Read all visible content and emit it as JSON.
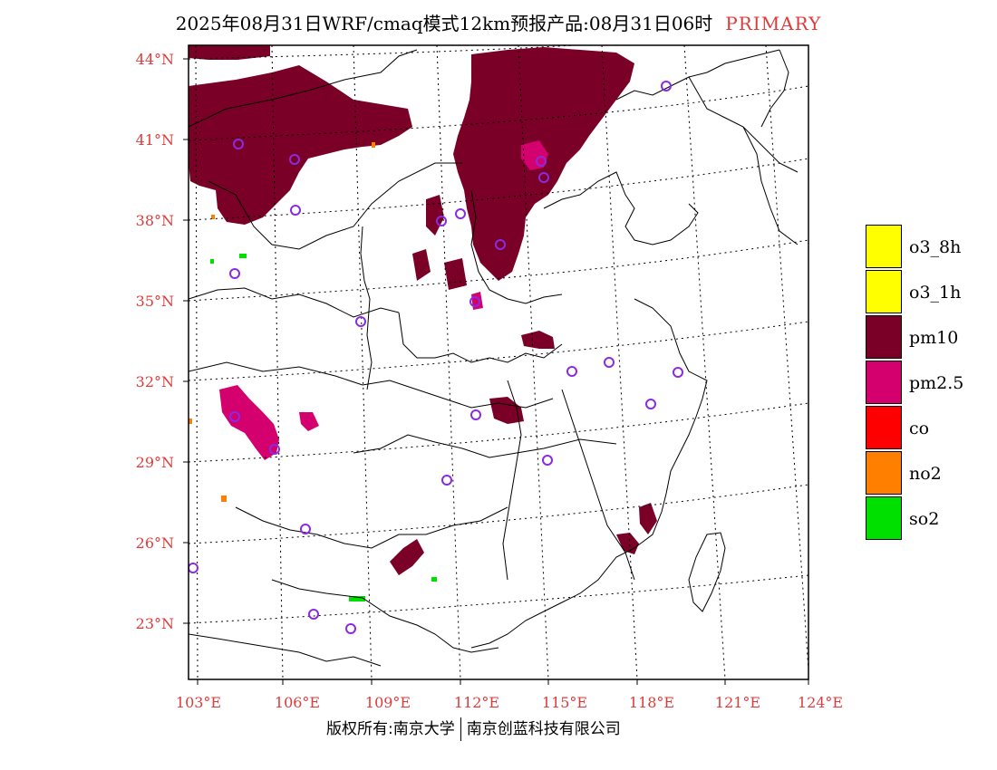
{
  "title": {
    "main": "2025年08月31日WRF/cmaq模式12km预报产品:08月31日06时",
    "tag": "PRIMARY"
  },
  "map": {
    "lat_labels": [
      "44°N",
      "41°N",
      "38°N",
      "35°N",
      "32°N",
      "29°N",
      "26°N",
      "23°N"
    ],
    "lon_labels": [
      "103°E",
      "106°E",
      "109°E",
      "112°E",
      "115°E",
      "118°E",
      "121°E",
      "124°E"
    ],
    "label_color": "#e03a3a",
    "pollutant_colors": {
      "pm10": "#7a0028",
      "pm2.5": "#d4006e",
      "no2": "#ff8000",
      "so2": "#00e000"
    },
    "station_marker_color": "#8a2be2"
  },
  "legend": {
    "items": [
      {
        "label": "o3_8h",
        "color": "#ffff00"
      },
      {
        "label": "o3_1h",
        "color": "#ffff00"
      },
      {
        "label": "pm10",
        "color": "#7a0028"
      },
      {
        "label": "pm2.5",
        "color": "#d4006e"
      },
      {
        "label": "co",
        "color": "#ff0000"
      },
      {
        "label": "no2",
        "color": "#ff8000"
      },
      {
        "label": "so2",
        "color": "#00e000"
      }
    ]
  },
  "footer": {
    "left": "版权所有:南京大学",
    "right": "南京创蓝科技有限公司"
  }
}
